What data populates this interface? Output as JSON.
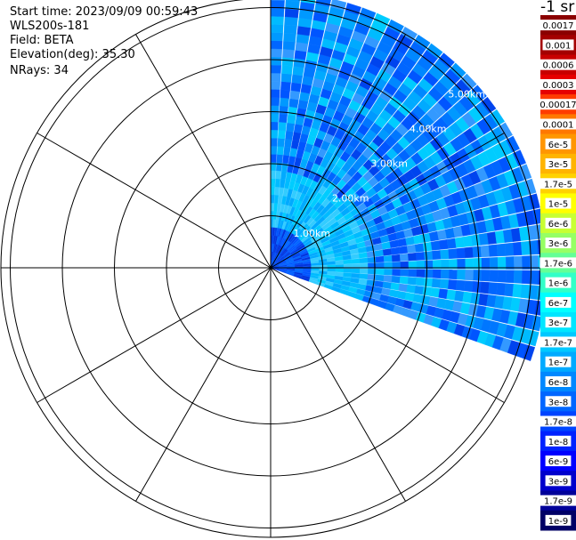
{
  "info": {
    "start_time": "Start time: 2023/09/09 00:59:43",
    "instrument": "WLS200s-181",
    "field": "Field: BETA",
    "elevation": "Elevation(deg): 35.30",
    "nrays": "NRays: 34"
  },
  "colorbar": {
    "unit": "-1 sr",
    "labels": [
      "0.0017",
      "0.001",
      "0.0006",
      "0.0003",
      "0.00017",
      "0.0001",
      "6e-5",
      "3e-5",
      "1.7e-5",
      "1e-5",
      "6e-6",
      "3e-6",
      "1.7e-6",
      "1e-6",
      "6e-7",
      "3e-7",
      "1.7e-7",
      "1e-7",
      "6e-8",
      "3e-8",
      "1.7e-8",
      "1e-8",
      "6e-9",
      "3e-9",
      "1.7e-9",
      "1e-9"
    ],
    "colors": [
      "#8b0000",
      "#a40000",
      "#c80000",
      "#e60000",
      "#ff3c00",
      "#ff7800",
      "#ff9600",
      "#ffb400",
      "#ffd200",
      "#ffff00",
      "#c8ff32",
      "#96ff64",
      "#64ff96",
      "#32ffc8",
      "#00ffff",
      "#00e6ff",
      "#00c8ff",
      "#00aaff",
      "#0088ff",
      "#0066ff",
      "#0044ff",
      "#0022ff",
      "#0000ff",
      "#0000cc",
      "#000099",
      "#000066"
    ]
  },
  "chart_data": {
    "type": "polar-ppi",
    "range_rings": [
      "1.00km",
      "2.00km",
      "3.00km",
      "4.00km",
      "5.00km"
    ],
    "azimuth_start_deg": 0,
    "azimuth_end_deg": 110,
    "max_range_km": 5.3,
    "grid_angle_step_deg": 30,
    "rings_km": [
      1,
      2,
      3,
      4,
      5
    ]
  }
}
